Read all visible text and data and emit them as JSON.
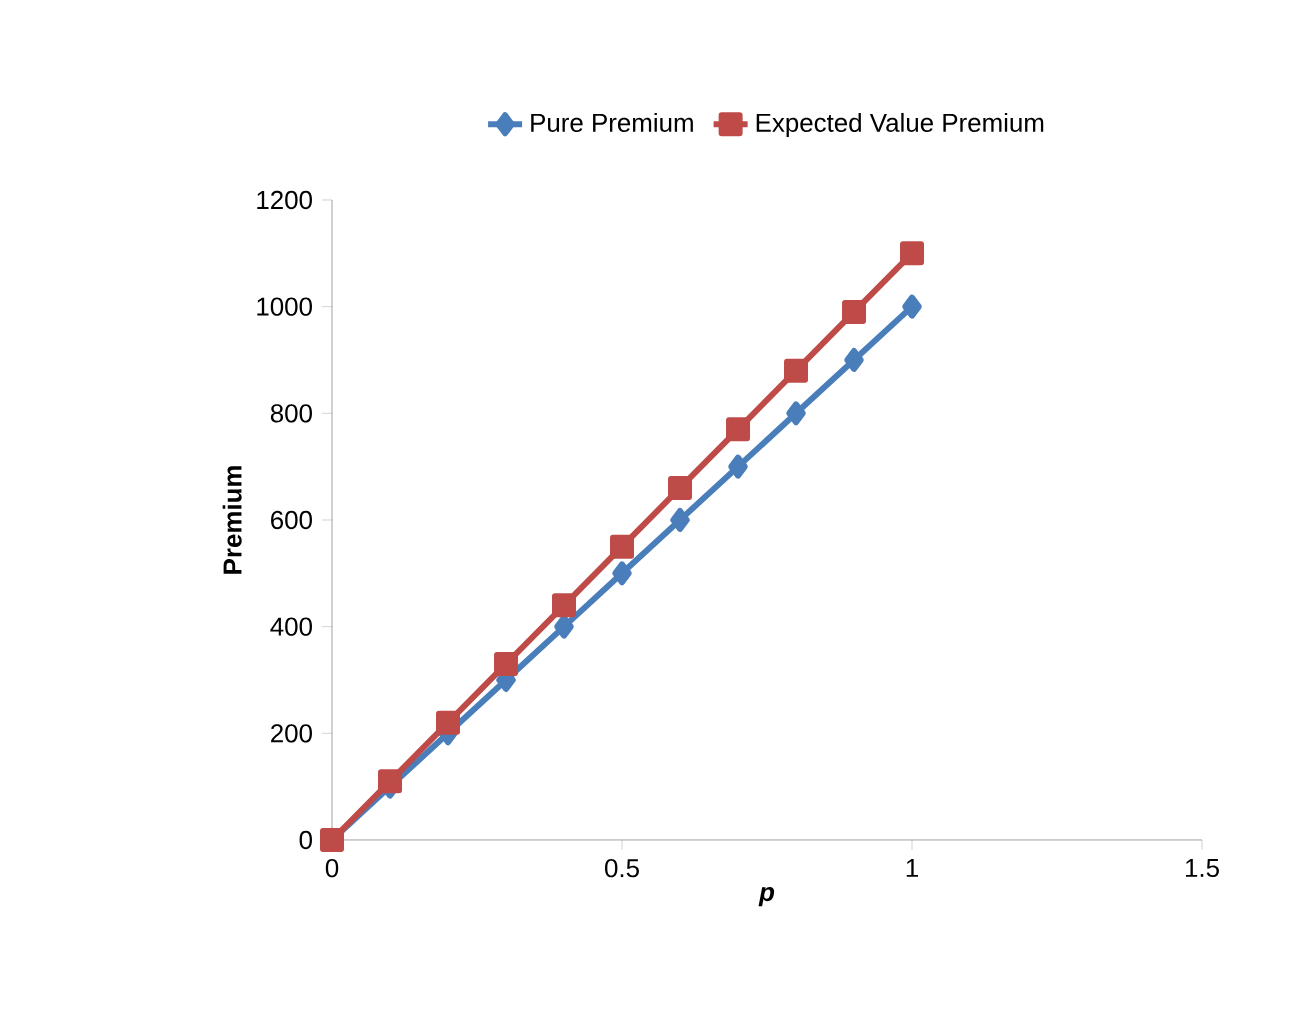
{
  "chart_data": {
    "type": "line",
    "xlabel": "p",
    "ylabel": "Premium",
    "x": [
      0,
      0.1,
      0.2,
      0.3,
      0.4,
      0.5,
      0.6,
      0.7,
      0.8,
      0.9,
      1
    ],
    "series": [
      {
        "name": "Pure Premium",
        "color": "#4a7ebb",
        "marker": "diamond",
        "values": [
          0,
          100,
          200,
          300,
          400,
          500,
          600,
          700,
          800,
          900,
          1000
        ]
      },
      {
        "name": "Expected Value Premium",
        "color": "#be4b48",
        "marker": "square",
        "values": [
          0,
          110,
          220,
          330,
          440,
          550,
          660,
          770,
          880,
          990,
          1100
        ]
      }
    ],
    "xlim": [
      0,
      1.5
    ],
    "xticks": [
      0,
      0.5,
      1,
      1.5
    ],
    "ylim": [
      0,
      1200
    ],
    "yticks": [
      0,
      200,
      400,
      600,
      800,
      1000,
      1200
    ],
    "grid": false,
    "legend": "top",
    "line_style": "solid"
  }
}
